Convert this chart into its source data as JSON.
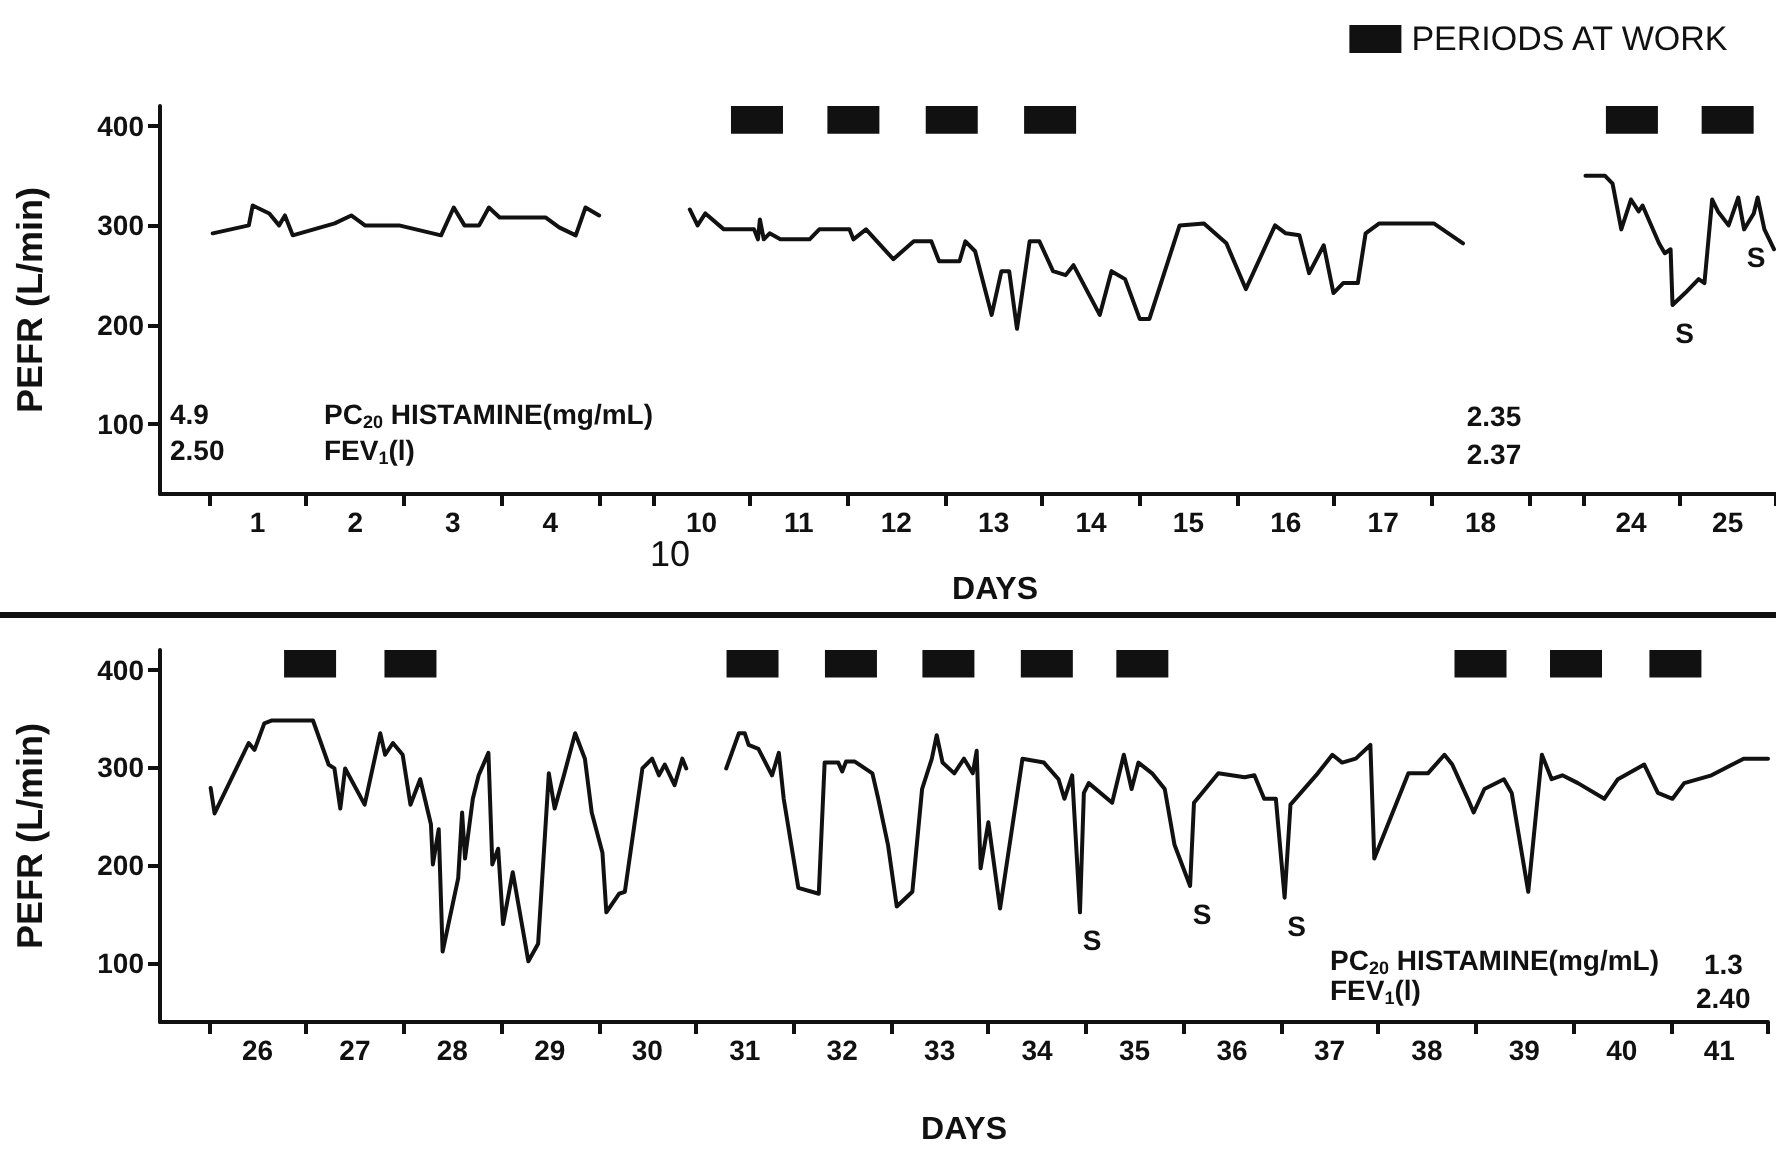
{
  "chart_data": [
    {
      "type": "line",
      "ylabel": "PEFR (L/min)",
      "xlim": [
        0,
        4.775
      ],
      "ylim": [
        30,
        420
      ],
      "yticks": [
        100,
        200,
        300,
        400
      ],
      "xticks": [
        {
          "value": 0.5,
          "label": null
        },
        {
          "value": 1.5,
          "label": null
        },
        {
          "value": 2.5,
          "label": null
        },
        {
          "value": 3.5,
          "label": null
        },
        {
          "value": 4.5,
          "label": null
        },
        1,
        2,
        3,
        4
      ],
      "series": [
        {
          "color": "#111111",
          "x": [
            0.54,
            0.91,
            0.95,
            1.12,
            1.22,
            1.28,
            1.36,
            1.79,
            1.96,
            2.1,
            2.45,
            2.88,
            3.01,
            3.12,
            3.27,
            3.37,
            3.48,
            3.95,
            4.09,
            4.26,
            4.36,
            4.5
          ],
          "values": [
            292,
            300,
            320,
            312,
            300,
            310,
            290,
            302,
            310,
            300,
            300,
            290,
            318,
            300,
            300,
            318,
            308,
            308,
            298,
            290,
            318,
            310
          ]
        }
      ],
      "annotations": [
        "4.9",
        "2.50",
        "PC$_{20}$ HISTAMINE(mg/mL)",
        "FEV$_{1}$(l)"
      ]
    },
    {
      "type": "line",
      "xlabel": "DAYS",
      "xlim": [
        9.225,
        18.775
      ],
      "ylim": [
        30,
        420
      ],
      "yticks": [
        100,
        200,
        300,
        400
      ],
      "tick_labels": "x",
      "legend": "top right",
      "xticks": [
        {
          "value": 9.5,
          "label": null
        },
        {
          "value": 10.5,
          "label": null
        },
        {
          "value": 11.5,
          "label": null
        },
        {
          "value": 12.5,
          "label": null
        },
        {
          "value": 13.5,
          "label": null
        },
        {
          "value": 14.5,
          "label": null
        },
        {
          "value": 15.5,
          "label": null
        },
        {
          "value": 16.5,
          "label": null
        },
        {
          "value": 17.5,
          "label": null
        },
        {
          "value": 18.5,
          "label": null
        },
        10,
        11,
        12,
        13,
        14,
        15,
        16,
        17,
        18
      ],
      "series": [
        {
          "color": "#111111",
          "x": [
            9.88,
            9.96,
            10.04,
            10.23,
            10.54,
            10.58,
            10.6,
            10.64,
            10.7,
            10.81,
            11.11,
            11.21,
            11.52,
            11.56,
            11.69,
            11.97,
            12.18,
            12.36,
            12.44,
            12.65,
            12.71,
            12.81,
            12.98,
            13.08,
            13.16,
            13.24,
            13.37,
            13.47,
            13.61,
            13.74,
            13.82,
            14.09,
            14.21,
            14.35,
            14.5,
            14.6,
            14.91,
            15.16,
            15.39,
            15.59,
            15.89,
            16.0,
            16.14,
            16.24,
            16.39,
            16.49,
            16.59,
            16.74,
            16.82,
            16.96,
            17.52,
            17.82
          ],
          "values": [
            316,
            300,
            312,
            296,
            296,
            286,
            306,
            286,
            292,
            286,
            286,
            296,
            296,
            286,
            296,
            266,
            284,
            284,
            264,
            264,
            284,
            274,
            210,
            254,
            254,
            196,
            284,
            284,
            254,
            250,
            260,
            210,
            254,
            246,
            206,
            206,
            300,
            302,
            282,
            236,
            300,
            292,
            290,
            252,
            280,
            232,
            242,
            242,
            292,
            302,
            302,
            282
          ]
        },
        {
          "type": "bar",
          "name": "PERIODS AT WORK",
          "color": "#111111",
          "x": [
            10.57,
            11.56,
            12.57,
            13.58
          ],
          "base": [
            392,
            392,
            392,
            392
          ],
          "values": [
            28,
            28,
            28,
            28
          ]
        }
      ],
      "annotations": [
        "2.35",
        "2.37",
        "10"
      ]
    },
    {
      "type": "line",
      "xlim": [
        23.225,
        25.5
      ],
      "ylim": [
        30,
        420
      ],
      "yticks": [
        100,
        200,
        300,
        400
      ],
      "tick_labels": "x",
      "xticks": [
        {
          "value": 23.5,
          "label": null
        },
        {
          "value": 24.5,
          "label": null
        },
        {
          "value": 25.5,
          "label": null
        },
        24,
        25
      ],
      "series": [
        {
          "color": "#111111",
          "x": [
            23.53,
            23.73,
            23.81,
            23.9,
            24.0,
            24.08,
            24.12,
            24.29,
            24.35,
            24.41,
            24.43,
            24.56,
            24.7,
            24.76,
            24.84,
            24.9,
            25.01,
            25.11,
            25.17,
            25.27,
            25.31,
            25.38,
            25.48
          ],
          "values": [
            350,
            350,
            342,
            296,
            326,
            314,
            320,
            282,
            272,
            276,
            220,
            232,
            246,
            242,
            326,
            314,
            300,
            328,
            296,
            312,
            328,
            296,
            276
          ]
        },
        {
          "type": "bar",
          "color": "#111111",
          "x": [
            24.01,
            25.0
          ],
          "base": [
            392,
            392
          ],
          "values": [
            28,
            28
          ]
        }
      ],
      "annotations": [
        {
          "text": "S",
          "x": 24.43,
          "y": 220
        },
        {
          "text": "S",
          "x": 25.17,
          "y": 296
        }
      ]
    },
    {
      "type": "line",
      "xlabel": "DAYS",
      "ylabel": "PEFR (L/min)",
      "xlim": [
        25,
        41.5
      ],
      "ylim": [
        40,
        420
      ],
      "yticks": [
        100,
        200,
        300,
        400
      ],
      "xticks": [
        {
          "value": 25.5,
          "label": null
        },
        {
          "value": 26.5,
          "label": null
        },
        {
          "value": 27.5,
          "label": null
        },
        {
          "value": 28.5,
          "label": null
        },
        {
          "value": 29.5,
          "label": null
        },
        {
          "value": 30.5,
          "label": null
        },
        {
          "value": 31.5,
          "label": null
        },
        {
          "value": 32.5,
          "label": null
        },
        {
          "value": 33.5,
          "label": null
        },
        {
          "value": 34.5,
          "label": null
        },
        {
          "value": 35.5,
          "label": null
        },
        {
          "value": 36.5,
          "label": null
        },
        {
          "value": 37.5,
          "label": null
        },
        {
          "value": 38.5,
          "label": null
        },
        {
          "value": 39.5,
          "label": null
        },
        {
          "value": 40.5,
          "label": null
        },
        {
          "value": 41.5,
          "label": null
        },
        26,
        27,
        28,
        29,
        30,
        31,
        32,
        33,
        34,
        35,
        36,
        37,
        38,
        39,
        40,
        41
      ],
      "series": [
        {
          "color": "#111111",
          "x": [
            25.52,
            25.56,
            25.91,
            25.97,
            26.07,
            26.15,
            26.57,
            26.73,
            26.79,
            26.85,
            26.9,
            27.1,
            27.26,
            27.31,
            27.39,
            27.49,
            27.57,
            27.67,
            27.78,
            27.8,
            27.86,
            27.9,
            28.06,
            28.1,
            28.13,
            28.21,
            28.27,
            28.37,
            28.41,
            28.47,
            28.52,
            28.62,
            28.78,
            28.88,
            28.99,
            29.05,
            29.15,
            29.26,
            29.36,
            29.43,
            29.54,
            29.58,
            29.71,
            29.77,
            29.95,
            30.05,
            30.12,
            30.18,
            30.28,
            30.36,
            30.4,
            30.6,
            30.81,
            30.94,
            31.0,
            31.04,
            31.14,
            31.28,
            31.35,
            31.4,
            31.55,
            31.76,
            31.82,
            31.96,
            32.0,
            32.04,
            32.13,
            32.31,
            32.37,
            32.47,
            32.56,
            32.72,
            32.82,
            32.92,
            32.97,
            33.03,
            33.15,
            33.25,
            33.34,
            33.38,
            33.42,
            33.5,
            33.62,
            33.85,
            34.07,
            34.22,
            34.28,
            34.36,
            34.44,
            34.48,
            34.53,
            34.77,
            34.89,
            34.97,
            35.04,
            35.18,
            35.31,
            35.41,
            35.57,
            35.61,
            35.86,
            36.13,
            36.23,
            36.33,
            36.45,
            36.54,
            36.6,
            36.88,
            37.03,
            37.13,
            37.27,
            37.42,
            37.46,
            37.81,
            38.01,
            38.18,
            38.26,
            38.42,
            38.48,
            38.59,
            38.79,
            38.87,
            39.04,
            39.18,
            39.28,
            39.39,
            39.55,
            39.82,
            39.96,
            40.23,
            40.37,
            40.52,
            40.64,
            40.92,
            41.25,
            41.5
          ],
          "values": [
            279,
            253,
            325,
            318,
            345,
            348,
            348,
            303,
            299,
            258,
            299,
            262,
            335,
            313,
            325,
            313,
            262,
            288,
            242,
            201,
            237,
            112,
            187,
            254,
            207,
            268,
            292,
            315,
            201,
            217,
            140,
            193,
            102,
            120,
            294,
            258,
            294,
            335,
            309,
            254,
            213,
            152,
            171,
            173,
            299,
            309,
            292,
            303,
            282,
            309,
            299,
            null,
            299,
            335,
            335,
            323,
            319,
            292,
            315,
            268,
            177,
            171,
            305,
            305,
            296,
            306,
            306,
            294,
            268,
            221,
            158,
            173,
            278,
            309,
            333,
            305,
            294,
            309,
            294,
            317,
            197,
            244,
            156,
            309,
            305,
            288,
            268,
            292,
            152,
            274,
            284,
            264,
            313,
            278,
            305,
            294,
            278,
            221,
            179,
            264,
            294,
            290,
            292,
            268,
            268,
            167,
            262,
            294,
            313,
            305,
            309,
            323,
            207,
            294,
            294,
            313,
            303,
            268,
            254,
            278,
            288,
            274,
            173,
            313,
            288,
            292,
            284,
            268,
            288,
            303,
            274,
            268,
            284,
            292,
            309,
            309
          ]
        },
        {
          "type": "bar",
          "color": "#111111",
          "x": [
            26.54,
            27.57,
            31.08,
            32.09,
            33.09,
            34.1,
            35.08,
            38.55,
            39.53,
            40.55
          ],
          "base": [
            392,
            392,
            392,
            392,
            392,
            392,
            392,
            392,
            392,
            392
          ],
          "values": [
            28,
            28,
            28,
            28,
            28,
            28,
            28,
            28,
            28,
            28
          ]
        }
      ],
      "annotations": [
        {
          "text": "S",
          "x": 34.44,
          "y": 152
        },
        {
          "text": "S",
          "x": 35.57,
          "y": 179
        },
        {
          "text": "S",
          "x": 36.54,
          "y": 167
        },
        "PC$_{20}$ HISTAMINE(mg/mL)",
        "FEV$_{1}$(l)",
        "1.3",
        "2.40"
      ]
    }
  ]
}
